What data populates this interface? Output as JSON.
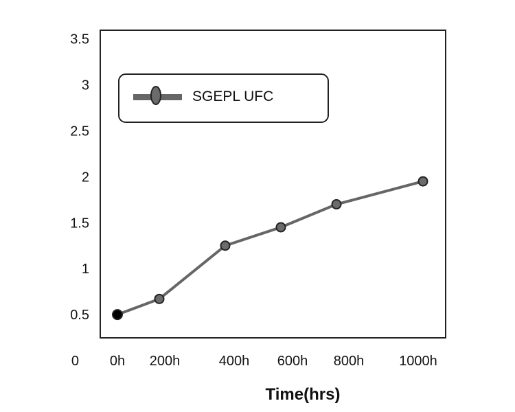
{
  "chart_data": {
    "type": "line",
    "title": "",
    "xlabel": "Time(hrs)",
    "ylabel": "",
    "x": [
      "0h",
      "200h",
      "400h",
      "600h",
      "800h",
      "1000h"
    ],
    "y_ticks": [
      "0",
      "0.5",
      "1",
      "1.5",
      "2",
      "2.5",
      "3",
      "3.5"
    ],
    "ylim": [
      0,
      3.5
    ],
    "grid": false,
    "legend_position": "top-left",
    "series": [
      {
        "name": "SGEPL UFC",
        "values": [
          0.5,
          0.67,
          1.25,
          1.45,
          1.7,
          1.95
        ],
        "color": "#666666",
        "marker_color": "#6b6b6b"
      }
    ]
  }
}
